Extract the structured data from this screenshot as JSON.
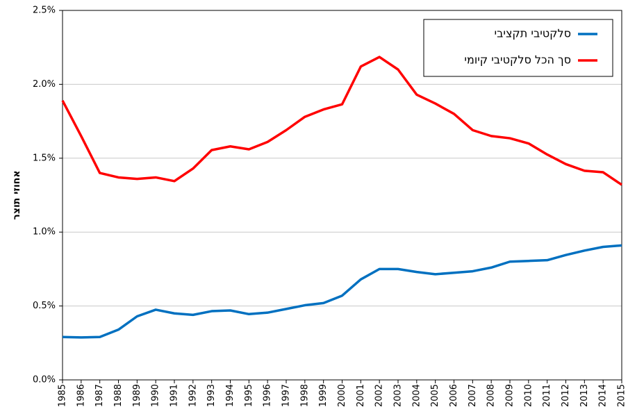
{
  "chart_data": {
    "type": "line",
    "y_label": "אחוזי תוצר",
    "x": [
      1985,
      1986,
      1987,
      1988,
      1989,
      1990,
      1991,
      1992,
      1993,
      1994,
      1995,
      1996,
      1997,
      1998,
      1999,
      2000,
      2001,
      2002,
      2003,
      2004,
      2005,
      2006,
      2007,
      2008,
      2009,
      2010,
      2011,
      2012,
      2013,
      2014,
      2015
    ],
    "series": [
      {
        "name": "סלקטיבי תקציבי",
        "color": "#0070c0",
        "values": [
          0.29,
          0.287,
          0.29,
          0.34,
          0.43,
          0.475,
          0.45,
          0.44,
          0.465,
          0.47,
          0.445,
          0.455,
          0.48,
          0.505,
          0.52,
          0.57,
          0.68,
          0.75,
          0.75,
          0.73,
          0.715,
          0.725,
          0.735,
          0.76,
          0.8,
          0.805,
          0.81,
          0.845,
          0.875,
          0.9,
          0.91
        ]
      },
      {
        "name": "סך הכל סלקטיבי קיומי",
        "color": "#ff0000",
        "values": [
          1.89,
          1.65,
          1.4,
          1.37,
          1.36,
          1.37,
          1.345,
          1.43,
          1.555,
          1.58,
          1.56,
          1.61,
          1.69,
          1.78,
          1.83,
          1.865,
          2.12,
          2.185,
          2.1,
          1.93,
          1.87,
          1.8,
          1.69,
          1.65,
          1.635,
          1.6,
          1.525,
          1.46,
          1.415,
          1.405,
          1.32
        ]
      }
    ],
    "xlim": [
      1985,
      2015
    ],
    "xticks": [
      1985,
      1986,
      1987,
      1988,
      1989,
      1990,
      1991,
      1992,
      1993,
      1994,
      1995,
      1996,
      1997,
      1998,
      1999,
      2000,
      2001,
      2002,
      2003,
      2004,
      2005,
      2006,
      2007,
      2008,
      2009,
      2010,
      2011,
      2012,
      2013,
      2014,
      2015
    ],
    "ylim": [
      0,
      2.5
    ],
    "yticks": [
      {
        "value": 0,
        "label": "0.0%"
      },
      {
        "value": 0.5,
        "label": "0.5%"
      },
      {
        "value": 1,
        "label": "1.0%"
      },
      {
        "value": 1.5,
        "label": "1.5%"
      },
      {
        "value": 2,
        "label": "2.0%"
      },
      {
        "value": 2.5,
        "label": "2.5%"
      }
    ],
    "grid": true,
    "legend": "upper right"
  }
}
